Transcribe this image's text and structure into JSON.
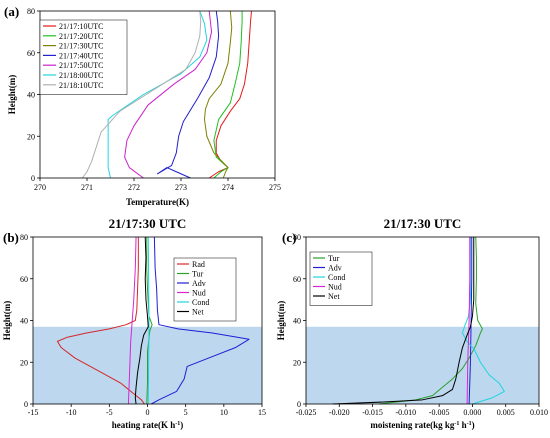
{
  "chart_data": [
    {
      "id": "a",
      "panel_label": "(a)",
      "type": "line",
      "title": "",
      "xlabel": "Temperature(K)",
      "ylabel": "Height(m)",
      "xlim": [
        270,
        275
      ],
      "ylim": [
        0,
        80
      ],
      "xticks": [
        "270",
        "271",
        "272",
        "273",
        "274",
        "275"
      ],
      "yticks": [
        "0",
        "20",
        "40",
        "60",
        "80"
      ],
      "legend": "top-left",
      "shade": null,
      "series": [
        {
          "name": "21/17:10UTC",
          "color": "#e41a1c",
          "points": [
            [
              273.6,
              0
            ],
            [
              273.8,
              3
            ],
            [
              274.0,
              5
            ],
            [
              273.85,
              8
            ],
            [
              273.75,
              12
            ],
            [
              273.75,
              18
            ],
            [
              273.85,
              25
            ],
            [
              274.05,
              32
            ],
            [
              274.25,
              38
            ],
            [
              274.35,
              45
            ],
            [
              274.42,
              55
            ],
            [
              274.45,
              65
            ],
            [
              274.48,
              75
            ],
            [
              274.5,
              80
            ]
          ]
        },
        {
          "name": "21/17:20UTC",
          "color": "#1fbf1f",
          "points": [
            [
              273.7,
              0
            ],
            [
              273.85,
              3
            ],
            [
              274.0,
              5
            ],
            [
              273.75,
              10
            ],
            [
              273.7,
              18
            ],
            [
              273.8,
              28
            ],
            [
              274.05,
              36
            ],
            [
              274.15,
              45
            ],
            [
              274.25,
              55
            ],
            [
              274.28,
              65
            ],
            [
              274.3,
              75
            ],
            [
              274.3,
              80
            ]
          ]
        },
        {
          "name": "21/17:30UTC",
          "color": "#808000",
          "points": [
            [
              273.9,
              0
            ],
            [
              273.95,
              3
            ],
            [
              274.0,
              5
            ],
            [
              273.7,
              12
            ],
            [
              273.55,
              20
            ],
            [
              273.5,
              28
            ],
            [
              273.52,
              33
            ],
            [
              273.6,
              38
            ],
            [
              273.85,
              45
            ],
            [
              274.0,
              55
            ],
            [
              274.05,
              65
            ],
            [
              274.08,
              72
            ],
            [
              274.05,
              80
            ]
          ]
        },
        {
          "name": "21/17:40UTC",
          "color": "#2020cc",
          "points": [
            [
              273.2,
              0
            ],
            [
              272.9,
              3
            ],
            [
              272.7,
              5
            ],
            [
              272.5,
              2
            ],
            [
              272.8,
              6
            ],
            [
              272.9,
              12
            ],
            [
              272.95,
              20
            ],
            [
              273.05,
              27
            ],
            [
              273.35,
              38
            ],
            [
              273.6,
              48
            ],
            [
              273.75,
              58
            ],
            [
              273.8,
              68
            ],
            [
              273.78,
              75
            ],
            [
              273.75,
              80
            ]
          ]
        },
        {
          "name": "21/17:50UTC",
          "color": "#cc22cc",
          "points": [
            [
              272.2,
              0
            ],
            [
              271.9,
              5
            ],
            [
              271.8,
              10
            ],
            [
              271.85,
              18
            ],
            [
              272.0,
              25
            ],
            [
              272.3,
              35
            ],
            [
              272.85,
              45
            ],
            [
              273.3,
              52
            ],
            [
              273.55,
              60
            ],
            [
              273.65,
              70
            ],
            [
              273.6,
              80
            ]
          ]
        },
        {
          "name": "21/18:00UTC",
          "color": "#22d4e0",
          "points": [
            [
              271.5,
              0
            ],
            [
              271.45,
              5
            ],
            [
              271.45,
              12
            ],
            [
              271.45,
              20
            ],
            [
              271.45,
              28
            ],
            [
              271.55,
              30
            ],
            [
              272.2,
              40
            ],
            [
              273.0,
              50
            ],
            [
              273.4,
              58
            ],
            [
              273.55,
              66
            ],
            [
              273.5,
              74
            ],
            [
              273.4,
              80
            ]
          ]
        },
        {
          "name": "21/18:10UTC",
          "color": "#b0b0b0",
          "points": [
            [
              270.9,
              0
            ],
            [
              271.0,
              3
            ],
            [
              271.1,
              8
            ],
            [
              271.2,
              15
            ],
            [
              271.3,
              22
            ],
            [
              271.7,
              32
            ],
            [
              272.4,
              42
            ],
            [
              273.1,
              52
            ],
            [
              273.3,
              60
            ],
            [
              273.4,
              68
            ],
            [
              273.42,
              75
            ],
            [
              273.4,
              80
            ]
          ]
        }
      ]
    },
    {
      "id": "b",
      "panel_label": "(b)",
      "type": "line",
      "title": "21/17:30 UTC",
      "xlabel": "heating rate(K h",
      "xlabel_sup": "-1",
      "xlabel_suffix": ")",
      "ylabel": "Height(m)",
      "xlim": [
        -15,
        15
      ],
      "ylim": [
        0,
        80
      ],
      "xticks": [
        "-15",
        "-10",
        "-5",
        "0",
        "5",
        "10",
        "15"
      ],
      "yticks": [
        "0",
        "20",
        "40",
        "60",
        "80"
      ],
      "legend": "top-right",
      "shade": {
        "y_from": 0,
        "y_to": 37,
        "color": "#bcd7ee"
      },
      "series": [
        {
          "name": "Rad",
          "color": "#d62728",
          "points": [
            [
              -0.4,
              0
            ],
            [
              -0.8,
              2
            ],
            [
              -1.5,
              4
            ],
            [
              -3.5,
              10
            ],
            [
              -6.5,
              16
            ],
            [
              -9.5,
              22
            ],
            [
              -11.3,
              27
            ],
            [
              -11.8,
              30
            ],
            [
              -10.5,
              32
            ],
            [
              -8.0,
              34
            ],
            [
              -5.0,
              36
            ],
            [
              -2.8,
              38
            ],
            [
              -1.6,
              40
            ],
            [
              -1.4,
              45
            ],
            [
              -1.3,
              55
            ],
            [
              -1.2,
              65
            ],
            [
              -1.2,
              75
            ],
            [
              -1.2,
              80
            ]
          ]
        },
        {
          "name": "Tur",
          "color": "#2ca02c",
          "points": [
            [
              -0.1,
              0
            ],
            [
              0.0,
              10
            ],
            [
              0.0,
              25
            ],
            [
              0.3,
              35
            ],
            [
              0.6,
              38
            ],
            [
              0.2,
              42
            ],
            [
              0.0,
              55
            ],
            [
              -0.1,
              65
            ],
            [
              -0.1,
              80
            ]
          ]
        },
        {
          "name": "Adv",
          "color": "#1f1fd6",
          "points": [
            [
              0.5,
              0
            ],
            [
              1.5,
              2
            ],
            [
              3.8,
              6
            ],
            [
              4.8,
              12
            ],
            [
              5.2,
              18
            ],
            [
              8.0,
              22
            ],
            [
              11.5,
              27
            ],
            [
              13.3,
              31
            ],
            [
              8.5,
              34
            ],
            [
              4.0,
              36
            ],
            [
              1.5,
              38
            ],
            [
              1.3,
              45
            ],
            [
              1.2,
              55
            ],
            [
              1.0,
              65
            ],
            [
              0.9,
              80
            ]
          ]
        },
        {
          "name": "Nud",
          "color": "#d627d6",
          "points": [
            [
              -2.5,
              0
            ],
            [
              -2.4,
              10
            ],
            [
              -2.3,
              20
            ],
            [
              -2.2,
              30
            ],
            [
              -2.0,
              40
            ],
            [
              -1.8,
              50
            ],
            [
              -1.6,
              65
            ],
            [
              -1.5,
              80
            ]
          ]
        },
        {
          "name": "Cond",
          "color": "#22d4e0",
          "points": [
            [
              0.1,
              0
            ],
            [
              0.15,
              20
            ],
            [
              0.2,
              40
            ],
            [
              0.15,
              60
            ],
            [
              0.1,
              80
            ]
          ]
        },
        {
          "name": "Net",
          "color": "#000000",
          "points": [
            [
              -1.5,
              0
            ],
            [
              -1.6,
              3
            ],
            [
              -1.5,
              8
            ],
            [
              -1.3,
              15
            ],
            [
              -1.0,
              22
            ],
            [
              -0.8,
              28
            ],
            [
              -0.5,
              33
            ],
            [
              0.1,
              37
            ],
            [
              0.0,
              42
            ],
            [
              -0.2,
              50
            ],
            [
              -0.3,
              60
            ],
            [
              -0.2,
              70
            ],
            [
              -0.3,
              80
            ]
          ]
        }
      ]
    },
    {
      "id": "c",
      "panel_label": "(c)",
      "type": "line",
      "title": "21/17:30 UTC",
      "xlabel": "moistening rate(kg kg",
      "xlabel_sup": "-1",
      "xlabel_mid": " h",
      "xlabel_sup2": "-1",
      "xlabel_suffix": ")",
      "ylabel": "Height(m)",
      "xlim": [
        -0.025,
        0.01
      ],
      "ylim": [
        0,
        80
      ],
      "xticks": [
        "-0.025",
        "-0.020",
        "-0.015",
        "-0.010",
        "-0.005",
        "0.000",
        "0.005",
        "0.010"
      ],
      "yticks": [
        "0",
        "20",
        "40",
        "60",
        "80"
      ],
      "legend": "top-left",
      "shade": {
        "y_from": 0,
        "y_to": 37,
        "color": "#bcd7ee"
      },
      "series": [
        {
          "name": "Tur",
          "color": "#2ca02c",
          "points": [
            [
              -0.014,
              0
            ],
            [
              -0.0085,
              2
            ],
            [
              -0.006,
              4
            ],
            [
              -0.0045,
              8
            ],
            [
              -0.003,
              12
            ],
            [
              -0.0015,
              17
            ],
            [
              -0.0005,
              22
            ],
            [
              0.0005,
              28
            ],
            [
              0.0012,
              34
            ],
            [
              0.0015,
              36
            ],
            [
              0.0008,
              40
            ],
            [
              0.0005,
              48
            ],
            [
              0.0006,
              60
            ],
            [
              0.0006,
              70
            ],
            [
              0.0005,
              80
            ]
          ]
        },
        {
          "name": "Adv",
          "color": "#1f1fd6",
          "points": [
            [
              -0.0005,
              0
            ],
            [
              -0.0003,
              20
            ],
            [
              -0.0002,
              40
            ],
            [
              -0.0001,
              60
            ],
            [
              -0.0001,
              80
            ]
          ]
        },
        {
          "name": "Cond",
          "color": "#22d4e0",
          "points": [
            [
              0.0,
              0
            ],
            [
              0.003,
              3
            ],
            [
              0.0048,
              6
            ],
            [
              0.004,
              10
            ],
            [
              0.0025,
              14
            ],
            [
              0.0012,
              20
            ],
            [
              0.0003,
              26
            ],
            [
              -0.0008,
              30
            ],
            [
              -0.0015,
              34
            ],
            [
              -0.0012,
              37
            ],
            [
              -0.0006,
              42
            ],
            [
              -0.0003,
              50
            ],
            [
              -0.0003,
              60
            ],
            [
              -0.0003,
              70
            ],
            [
              -0.0003,
              80
            ]
          ]
        },
        {
          "name": "Nud",
          "color": "#d627d6",
          "points": [
            [
              -0.0008,
              0
            ],
            [
              -0.0007,
              20
            ],
            [
              -0.0005,
              40
            ],
            [
              -0.0004,
              60
            ],
            [
              -0.0004,
              80
            ]
          ]
        },
        {
          "name": "Net",
          "color": "#000000",
          "points": [
            [
              -0.021,
              0
            ],
            [
              -0.013,
              1
            ],
            [
              -0.0075,
              2
            ],
            [
              -0.0045,
              4
            ],
            [
              -0.003,
              7
            ],
            [
              -0.0025,
              12
            ],
            [
              -0.002,
              20
            ],
            [
              -0.0015,
              27
            ],
            [
              -0.0008,
              33
            ],
            [
              -0.0003,
              37
            ],
            [
              0.0,
              42
            ],
            [
              0.0002,
              50
            ],
            [
              0.0002,
              60
            ],
            [
              0.0002,
              70
            ],
            [
              0.0002,
              80
            ]
          ]
        }
      ]
    }
  ]
}
